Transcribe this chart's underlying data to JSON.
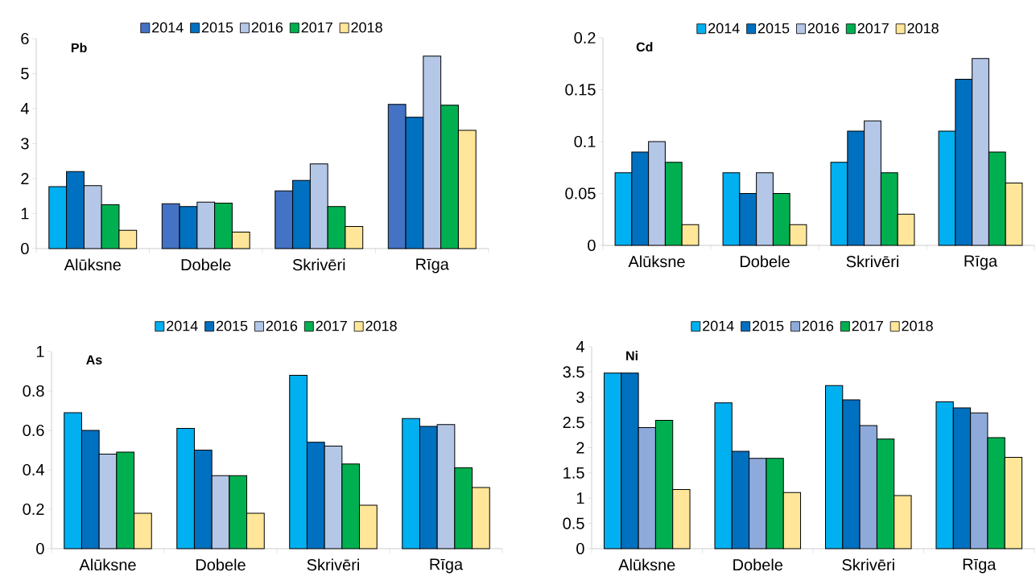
{
  "chart_data": [
    {
      "type": "bar",
      "title": "Pb",
      "categories": [
        "Alūksne",
        "Dobele",
        "Skrivēri",
        "Rīga"
      ],
      "ylim": [
        0,
        6
      ],
      "yticks": [
        0,
        1,
        2,
        3,
        4,
        5,
        6
      ],
      "legend": "top",
      "series": [
        {
          "name": "2014",
          "color": "#4472c4",
          "colors": [
            "#00b0f0",
            "#4472c4",
            "#4472c4",
            "#4472c4"
          ],
          "values": [
            1.77,
            1.28,
            1.65,
            4.12
          ]
        },
        {
          "name": "2015",
          "color": "#0070c0",
          "values": [
            2.2,
            1.2,
            1.95,
            3.75
          ]
        },
        {
          "name": "2016",
          "color": "#b4c7e7",
          "values": [
            1.8,
            1.33,
            2.42,
            5.5
          ]
        },
        {
          "name": "2017",
          "color": "#00b050",
          "values": [
            1.25,
            1.3,
            1.2,
            4.1
          ]
        },
        {
          "name": "2018",
          "color": "#ffe699",
          "values": [
            0.52,
            0.47,
            0.63,
            3.38
          ]
        }
      ]
    },
    {
      "type": "bar",
      "title": "Cd",
      "categories": [
        "Alūksne",
        "Dobele",
        "Skrivēri",
        "Rīga"
      ],
      "ylim": [
        0,
        0.2
      ],
      "yticks": [
        0,
        0.05,
        0.1,
        0.15,
        0.2
      ],
      "legend": "top",
      "series": [
        {
          "name": "2014",
          "color": "#00b0f0",
          "values": [
            0.07,
            0.07,
            0.08,
            0.11
          ]
        },
        {
          "name": "2015",
          "color": "#0070c0",
          "values": [
            0.09,
            0.05,
            0.11,
            0.16
          ]
        },
        {
          "name": "2016",
          "color": "#b4c7e7",
          "values": [
            0.1,
            0.07,
            0.12,
            0.18
          ]
        },
        {
          "name": "2017",
          "color": "#00b050",
          "values": [
            0.08,
            0.05,
            0.07,
            0.09
          ]
        },
        {
          "name": "2018",
          "color": "#ffe699",
          "values": [
            0.02,
            0.02,
            0.03,
            0.06
          ]
        }
      ]
    },
    {
      "type": "bar",
      "title": "As",
      "categories": [
        "Alūksne",
        "Dobele",
        "Skrivēri",
        "Rīga"
      ],
      "ylim": [
        0,
        1
      ],
      "yticks": [
        0,
        0.2,
        0.4,
        0.6,
        0.8,
        1
      ],
      "legend": "top",
      "series": [
        {
          "name": "2014",
          "color": "#00b0f0",
          "values": [
            0.69,
            0.61,
            0.88,
            0.66
          ]
        },
        {
          "name": "2015",
          "color": "#0070c0",
          "values": [
            0.6,
            0.5,
            0.54,
            0.62
          ]
        },
        {
          "name": "2016",
          "color": "#b4c7e7",
          "values": [
            0.48,
            0.37,
            0.52,
            0.63
          ]
        },
        {
          "name": "2017",
          "color": "#00b050",
          "values": [
            0.49,
            0.37,
            0.43,
            0.41
          ]
        },
        {
          "name": "2018",
          "color": "#ffe699",
          "values": [
            0.18,
            0.18,
            0.22,
            0.31
          ]
        }
      ]
    },
    {
      "type": "bar",
      "title": "Ni",
      "categories": [
        "Alūksne",
        "Dobele",
        "Skrivēri",
        "Rīga"
      ],
      "ylim": [
        0,
        4
      ],
      "yticks": [
        0,
        0.5,
        1,
        1.5,
        2,
        2.5,
        3,
        3.5,
        4
      ],
      "legend": "top",
      "series": [
        {
          "name": "2014",
          "color": "#00b0f0",
          "values": [
            3.48,
            2.89,
            3.23,
            2.91
          ]
        },
        {
          "name": "2015",
          "color": "#0070c0",
          "values": [
            3.48,
            1.93,
            2.95,
            2.79
          ]
        },
        {
          "name": "2016",
          "color": "#8eaadb",
          "values": [
            2.4,
            1.79,
            2.44,
            2.69
          ]
        },
        {
          "name": "2017",
          "color": "#00b050",
          "values": [
            2.54,
            1.79,
            2.17,
            2.2
          ]
        },
        {
          "name": "2018",
          "color": "#ffe699",
          "values": [
            1.17,
            1.11,
            1.05,
            1.81
          ]
        }
      ]
    }
  ]
}
